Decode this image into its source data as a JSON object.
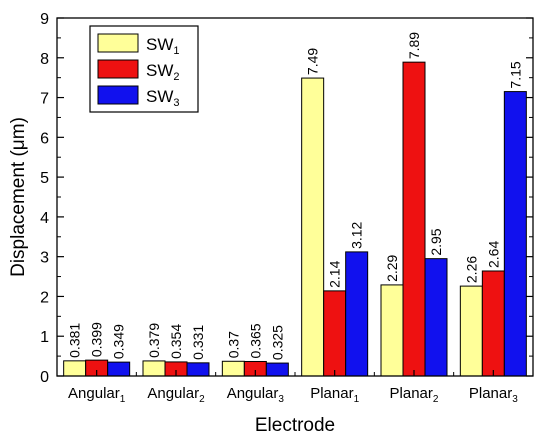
{
  "chart_data": {
    "type": "bar",
    "xlabel": "Electrode",
    "ylabel": "Displacement (μm)",
    "ylim": [
      0,
      9
    ],
    "yticks": [
      "0",
      "1",
      "2",
      "3",
      "4",
      "5",
      "6",
      "7",
      "8",
      "9"
    ],
    "categories": [
      {
        "base": "Angular",
        "sub": "1"
      },
      {
        "base": "Angular",
        "sub": "2"
      },
      {
        "base": "Angular",
        "sub": "3"
      },
      {
        "base": "Planar",
        "sub": "1"
      },
      {
        "base": "Planar",
        "sub": "2"
      },
      {
        "base": "Planar",
        "sub": "3"
      }
    ],
    "series": [
      {
        "name": "SW",
        "sub": "1",
        "color": "#ffff99",
        "values": [
          0.381,
          0.379,
          0.37,
          7.49,
          2.29,
          2.26
        ],
        "labels": [
          "0.381",
          "0.379",
          "0.37",
          "7.49",
          "2.29",
          "2.26"
        ]
      },
      {
        "name": "SW",
        "sub": "2",
        "color": "#ee1111",
        "values": [
          0.399,
          0.354,
          0.365,
          2.14,
          7.89,
          2.64
        ],
        "labels": [
          "0.399",
          "0.354",
          "0.365",
          "2.14",
          "7.89",
          "2.64"
        ]
      },
      {
        "name": "SW",
        "sub": "3",
        "color": "#1111ee",
        "values": [
          0.349,
          0.331,
          0.325,
          3.12,
          2.95,
          7.15
        ],
        "labels": [
          "0.349",
          "0.331",
          "0.325",
          "3.12",
          "2.95",
          "7.15"
        ]
      }
    ],
    "legend": {
      "position": "top-left"
    },
    "grid": false
  }
}
